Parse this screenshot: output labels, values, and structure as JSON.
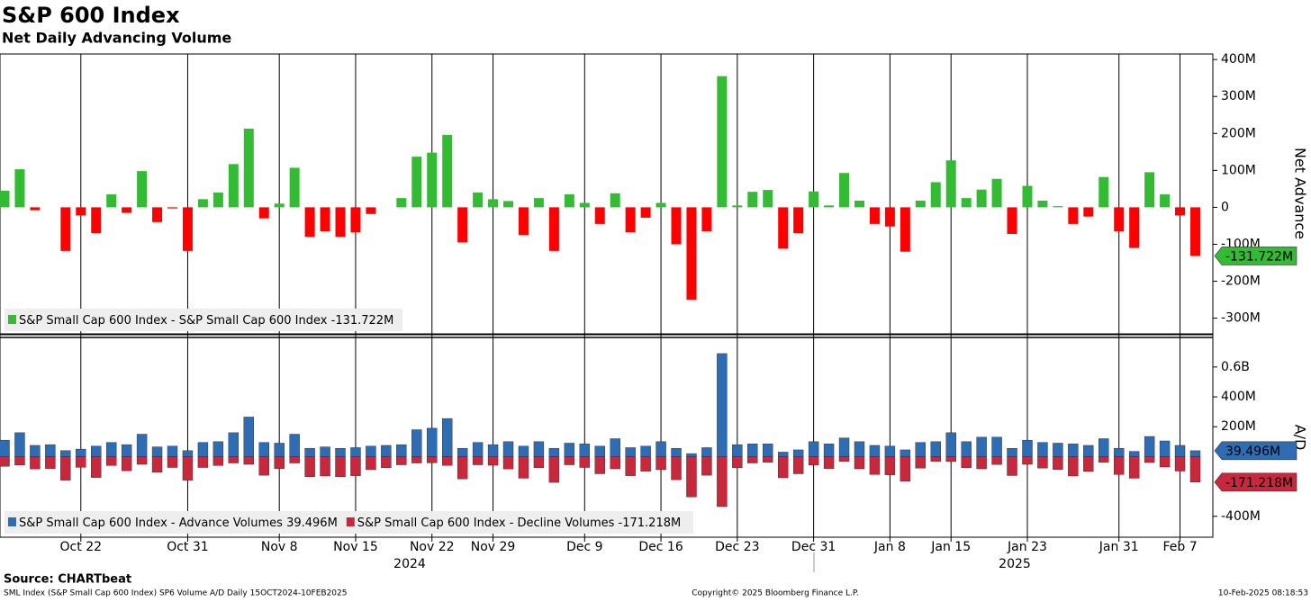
{
  "header": {
    "title": "S&P 600 Index",
    "subtitle": "Net Daily Advancing Volume"
  },
  "footer": {
    "source": "Source: CHARTbeat",
    "description": "SML Index (S&P Small Cap 600 Index) SP6 Volume A/D  Daily 15OCT2024-10FEB2025",
    "copyright": "Copyright© 2025 Bloomberg Finance L.P.",
    "timestamp": "10-Feb-2025 08:18:53"
  },
  "chart_data": [
    {
      "type": "bar",
      "y_label": "Net Advance",
      "grid": "x",
      "ylim": [
        -340,
        415
      ],
      "yticks": [
        {
          "value": 400,
          "label": "400M"
        },
        {
          "value": 300,
          "label": "300M"
        },
        {
          "value": 200,
          "label": "200M"
        },
        {
          "value": 100,
          "label": "100M"
        },
        0,
        {
          "value": -100,
          "label": "-100M"
        },
        {
          "value": -200,
          "label": "-200M"
        },
        {
          "value": -300,
          "label": "-300M"
        }
      ],
      "series": [
        {
          "name": "S&P Small Cap 600 Index - S&P Small Cap 600 Index",
          "color_positive": "#33bb33",
          "color_negative": "#ff0000",
          "tag_color": "#33bb33",
          "values": [
            45,
            103,
            -8,
            0,
            -118,
            -22,
            -70,
            35,
            -15,
            98,
            -40,
            -3,
            -118,
            22,
            40,
            117,
            213,
            -30,
            10,
            107,
            -80,
            -65,
            -80,
            -68,
            -18,
            0,
            25,
            137,
            148,
            196,
            -95,
            40,
            22,
            17,
            -75,
            25,
            -118,
            35,
            12,
            -45,
            38,
            -68,
            -28,
            12,
            -100,
            -250,
            -65,
            355,
            5,
            42,
            47,
            -112,
            -70,
            43,
            5,
            93,
            18,
            -45,
            -52,
            -120,
            18,
            68,
            127,
            25,
            48,
            77,
            -72,
            58,
            18,
            3,
            -45,
            -25,
            82,
            -65,
            -110,
            95,
            35,
            -22,
            -131.722
          ],
          "last_value_label": "-131.722M"
        }
      ]
    },
    {
      "type": "bar",
      "y_label": "A/D",
      "grid": "x",
      "ylim": [
        -540,
        792
      ],
      "yticks": [
        {
          "value": 600,
          "label": "0.6B"
        },
        {
          "value": 400,
          "label": "400M"
        },
        {
          "value": 200,
          "label": "200M"
        },
        {
          "value": -400,
          "label": "-400M"
        }
      ],
      "categories": [
        null,
        null,
        null,
        null,
        null,
        "Oct 22",
        null,
        null,
        null,
        null,
        null,
        null,
        "Oct 31",
        null,
        null,
        null,
        null,
        null,
        "Nov 8",
        null,
        null,
        null,
        null,
        "Nov 15",
        null,
        null,
        null,
        null,
        "Nov 22",
        null,
        null,
        null,
        "Nov 29",
        null,
        null,
        null,
        null,
        null,
        "Dec 9",
        null,
        null,
        null,
        null,
        "Dec 16",
        null,
        null,
        null,
        null,
        "Dec 23",
        null,
        null,
        null,
        null,
        "Dec 31",
        null,
        null,
        null,
        null,
        "Jan 8",
        null,
        null,
        null,
        "Jan 15",
        null,
        null,
        null,
        null,
        "Jan 23",
        null,
        null,
        null,
        null,
        null,
        "Jan 31",
        null,
        null,
        null,
        "Feb 7",
        null
      ],
      "year_labels": [
        "2024",
        "2025"
      ],
      "series": [
        {
          "name": "S&P Small Cap 600 Index - Advance Volumes",
          "color": "#2e6db4",
          "values": [
            110,
            160,
            75,
            80,
            40,
            50,
            70,
            95,
            80,
            150,
            65,
            70,
            40,
            95,
            100,
            160,
            265,
            95,
            90,
            150,
            55,
            65,
            55,
            60,
            70,
            75,
            80,
            180,
            190,
            255,
            55,
            95,
            80,
            100,
            70,
            100,
            55,
            90,
            85,
            70,
            120,
            60,
            70,
            100,
            55,
            20,
            60,
            690,
            80,
            85,
            85,
            30,
            45,
            100,
            85,
            125,
            100,
            75,
            70,
            45,
            95,
            100,
            160,
            100,
            130,
            130,
            55,
            110,
            95,
            90,
            85,
            75,
            120,
            55,
            35,
            135,
            105,
            75,
            39.496
          ],
          "last_value_label": "39.496M"
        },
        {
          "name": "S&P Small Cap 600 Index - Decline Volumes",
          "color": "#c8283c",
          "values": [
            -65,
            -57,
            -83,
            -80,
            -158,
            -72,
            -140,
            -60,
            -95,
            -52,
            -105,
            -73,
            -158,
            -73,
            -60,
            -43,
            -52,
            -125,
            -80,
            -43,
            -135,
            -130,
            -135,
            -128,
            -88,
            -75,
            -55,
            -43,
            -42,
            -59,
            -150,
            -55,
            -58,
            -83,
            -145,
            -75,
            -173,
            -55,
            -73,
            -115,
            -82,
            -128,
            -98,
            -88,
            -155,
            -270,
            -125,
            -335,
            -75,
            -43,
            -38,
            -142,
            -115,
            -57,
            -80,
            -32,
            -82,
            -120,
            -122,
            -165,
            -77,
            -32,
            -33,
            -75,
            -82,
            -53,
            -127,
            -52,
            -77,
            -87,
            -130,
            -100,
            -38,
            -120,
            -145,
            -40,
            -70,
            -97,
            -171.218
          ],
          "last_value_label": "-171.218M"
        }
      ]
    }
  ]
}
